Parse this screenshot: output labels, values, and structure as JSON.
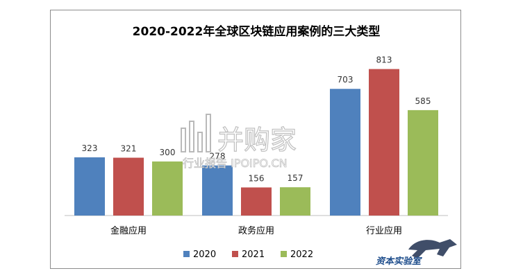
{
  "chart_data": {
    "type": "bar",
    "title": "2020-2022年全球区块链应用案例的三大类型",
    "categories": [
      "金融应用",
      "政务应用",
      "行业应用"
    ],
    "series": [
      {
        "name": "2020",
        "values": [
          323,
          278,
          703
        ],
        "color": "#4f81bd"
      },
      {
        "name": "2021",
        "values": [
          321,
          156,
          813
        ],
        "color": "#c0504d"
      },
      {
        "name": "2022",
        "values": [
          300,
          157,
          585
        ],
        "color": "#9bbb59"
      }
    ],
    "xlabel": "",
    "ylabel": "",
    "ylim": [
      0,
      900
    ],
    "grid": false,
    "legend": "bottom"
  },
  "watermark": {
    "main": "并购家",
    "sub": "行业报告 IPOIPO.CN"
  },
  "logo": {
    "text": "资本实验室",
    "icon": "leopard-icon"
  }
}
